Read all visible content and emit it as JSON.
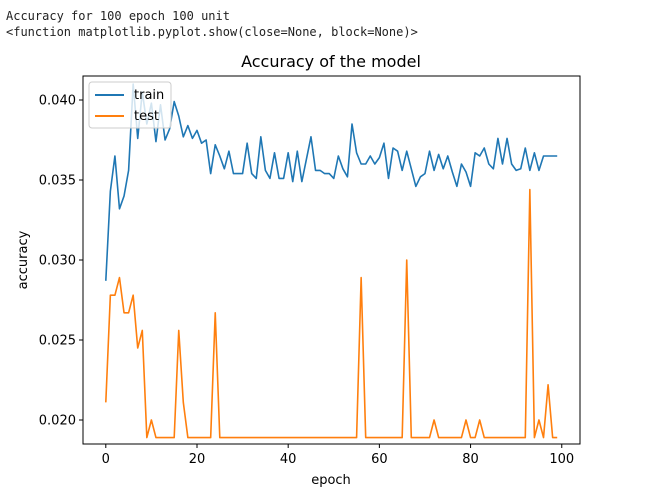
{
  "console": {
    "line1": "Accuracy for 100 epoch 100 unit",
    "line2": "<function matplotlib.pyplot.show(close=None, block=None)>"
  },
  "chart_data": {
    "type": "line",
    "title": "Accuracy of the model",
    "xlabel": "epoch",
    "ylabel": "accuracy",
    "xlim": [
      -5,
      104
    ],
    "ylim": [
      0.0185,
      0.0415
    ],
    "xticks": [
      0,
      20,
      40,
      60,
      80,
      100
    ],
    "yticks": [
      0.02,
      0.025,
      0.03,
      0.035,
      0.04
    ],
    "ytick_labels": [
      "0.020",
      "0.025",
      "0.030",
      "0.035",
      "0.040"
    ],
    "legend_position": "upper-left",
    "grid": false,
    "x": [
      0,
      1,
      2,
      3,
      4,
      5,
      6,
      7,
      8,
      9,
      10,
      11,
      12,
      13,
      14,
      15,
      16,
      17,
      18,
      19,
      20,
      21,
      22,
      23,
      24,
      25,
      26,
      27,
      28,
      29,
      30,
      31,
      32,
      33,
      34,
      35,
      36,
      37,
      38,
      39,
      40,
      41,
      42,
      43,
      44,
      45,
      46,
      47,
      48,
      49,
      50,
      51,
      52,
      53,
      54,
      55,
      56,
      57,
      58,
      59,
      60,
      61,
      62,
      63,
      64,
      65,
      66,
      67,
      68,
      69,
      70,
      71,
      72,
      73,
      74,
      75,
      76,
      77,
      78,
      79,
      80,
      81,
      82,
      83,
      84,
      85,
      86,
      87,
      88,
      89,
      90,
      91,
      92,
      93,
      94,
      95,
      96,
      97,
      98,
      99
    ],
    "series": [
      {
        "name": "train",
        "color": "#1f77b4",
        "values": [
          0.0287,
          0.0343,
          0.0365,
          0.0332,
          0.034,
          0.0356,
          0.041,
          0.0376,
          0.0405,
          0.0385,
          0.0398,
          0.0374,
          0.0397,
          0.0375,
          0.0382,
          0.0399,
          0.039,
          0.0377,
          0.0384,
          0.0376,
          0.0381,
          0.0373,
          0.0375,
          0.0354,
          0.0372,
          0.0365,
          0.0357,
          0.0368,
          0.0354,
          0.0354,
          0.0354,
          0.0373,
          0.0354,
          0.0351,
          0.0377,
          0.0356,
          0.0351,
          0.0367,
          0.0351,
          0.0351,
          0.0367,
          0.0349,
          0.0368,
          0.0349,
          0.0363,
          0.0377,
          0.0356,
          0.0356,
          0.0354,
          0.0354,
          0.0351,
          0.0365,
          0.0357,
          0.0352,
          0.0385,
          0.0367,
          0.036,
          0.036,
          0.0365,
          0.036,
          0.0364,
          0.0373,
          0.0351,
          0.037,
          0.0368,
          0.0356,
          0.0368,
          0.0357,
          0.0346,
          0.0352,
          0.0354,
          0.0368,
          0.0356,
          0.0366,
          0.0357,
          0.0365,
          0.0355,
          0.0346,
          0.036,
          0.0355,
          0.0346,
          0.0367,
          0.0365,
          0.037,
          0.036,
          0.0357,
          0.0376,
          0.036,
          0.0376,
          0.036,
          0.0356,
          0.0357,
          0.037,
          0.0356,
          0.0367,
          0.0356,
          0.0365,
          0.0365,
          0.0365,
          0.0365
        ]
      },
      {
        "name": "test",
        "color": "#ff7f0e",
        "values": [
          0.0211,
          0.0278,
          0.0278,
          0.0289,
          0.0267,
          0.0267,
          0.0278,
          0.0245,
          0.0256,
          0.0189,
          0.02,
          0.0189,
          0.0189,
          0.0189,
          0.0189,
          0.0189,
          0.0256,
          0.0211,
          0.0189,
          0.0189,
          0.0189,
          0.0189,
          0.0189,
          0.0189,
          0.0267,
          0.0189,
          0.0189,
          0.0189,
          0.0189,
          0.0189,
          0.0189,
          0.0189,
          0.0189,
          0.0189,
          0.0189,
          0.0189,
          0.0189,
          0.0189,
          0.0189,
          0.0189,
          0.0189,
          0.0189,
          0.0189,
          0.0189,
          0.0189,
          0.0189,
          0.0189,
          0.0189,
          0.0189,
          0.0189,
          0.0189,
          0.0189,
          0.0189,
          0.0189,
          0.0189,
          0.0189,
          0.0289,
          0.0189,
          0.0189,
          0.0189,
          0.0189,
          0.0189,
          0.0189,
          0.0189,
          0.0189,
          0.0189,
          0.03,
          0.0189,
          0.0189,
          0.0189,
          0.0189,
          0.0189,
          0.02,
          0.0189,
          0.0189,
          0.0189,
          0.0189,
          0.0189,
          0.0189,
          0.02,
          0.0189,
          0.0189,
          0.02,
          0.0189,
          0.0189,
          0.0189,
          0.0189,
          0.0189,
          0.0189,
          0.0189,
          0.0189,
          0.0189,
          0.0189,
          0.0344,
          0.0189,
          0.02,
          0.0189,
          0.0222,
          0.0189,
          0.0189
        ]
      }
    ]
  }
}
